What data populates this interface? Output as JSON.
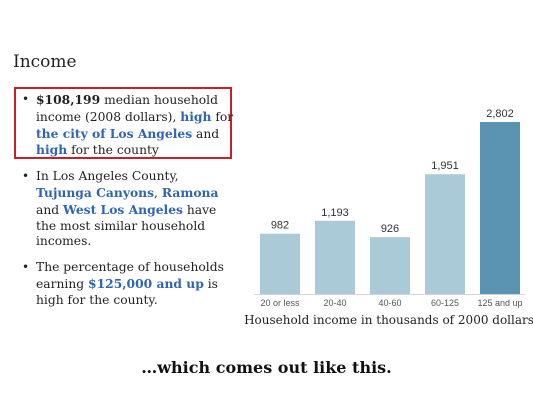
{
  "heading": "Income",
  "bullets": {
    "b1": {
      "amount": "$108,199",
      "text1": " median household income (2008 dollars), ",
      "link1": "high",
      "text2": " for ",
      "link2": "the city of Los Angeles",
      "text3": " and ",
      "link3": "high",
      "text4": " for the county"
    },
    "b2": {
      "text1": "In Los Angeles County, ",
      "link1": "Tujunga Canyons",
      "text2": ", ",
      "link2": "Ramona",
      "text3": " and ",
      "link3": "West Los Angeles",
      "text4": " have the most similar household incomes."
    },
    "b3": {
      "text1": "The percentage of households earning ",
      "link1": "$125,000 and up",
      "text2": " is high for the county."
    }
  },
  "caption": "…which comes out like this.",
  "colors": {
    "bar": "#abcad8",
    "bar_highlight": "#5b93b2",
    "link": "#2f64b5",
    "box": "#c8202b"
  },
  "chart_data": {
    "type": "bar",
    "categories": [
      "20 or less",
      "20-40",
      "40-60",
      "60-125",
      "125 and up"
    ],
    "values": [
      982,
      1193,
      926,
      1951,
      2802
    ],
    "value_labels": [
      "982",
      "1,193",
      "926",
      "1,951",
      "2,802"
    ],
    "highlighted_index": 4,
    "xlabel": "Household income in thousands of 2000 dollars",
    "ylim": [
      0,
      2802
    ],
    "grid": false
  }
}
